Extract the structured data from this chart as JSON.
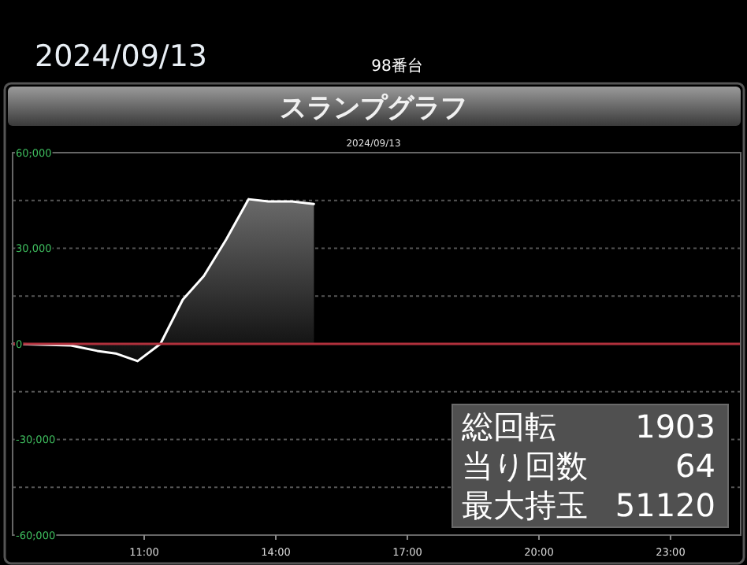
{
  "chart_data": {
    "type": "area",
    "title": "スランプグラフ",
    "subtitle": "98番台",
    "annotations": [
      "2024/09/13",
      "2024/09/13",
      "総回転",
      "1903",
      "当り回数",
      "64",
      "最大持玉",
      "51120"
    ],
    "x": [
      8,
      9.33,
      9.93,
      10.35,
      10.85,
      11.37,
      11.88,
      12.36,
      12.87,
      13.38,
      13.83,
      14.37,
      14.87
    ],
    "series": [
      {
        "color": "#ffffff",
        "values": [
          0,
          -500,
          -2200,
          -3000,
          -5400,
          0,
          13900,
          21300,
          32800,
          45400,
          44700,
          44700,
          43900
        ]
      }
    ],
    "xlim": [
      8,
      24.6
    ],
    "xticks": [
      {
        "value": 11,
        "label": "11:00"
      },
      {
        "value": 14,
        "label": "14:00"
      },
      {
        "value": 17,
        "label": "17:00"
      },
      {
        "value": 20,
        "label": "20:00"
      },
      {
        "value": 23,
        "label": "23:00"
      }
    ],
    "ylim": [
      -60000,
      60000
    ],
    "yticks": [
      {
        "value": 60000,
        "label": "60,000"
      },
      {
        "value": 45000,
        "label": null
      },
      {
        "value": 30000,
        "label": "30,000"
      },
      {
        "value": 15000,
        "label": null
      },
      {
        "value": 0,
        "label": "0"
      },
      {
        "value": -15000,
        "label": null
      },
      {
        "value": -30000,
        "label": "-30,000"
      },
      {
        "value": -45000,
        "label": null
      },
      {
        "value": -60000,
        "label": "-60,000"
      }
    ],
    "ref_lines": [
      {
        "axis": "y",
        "value": 0,
        "color": "#b0303c"
      }
    ],
    "grid": "y"
  }
}
